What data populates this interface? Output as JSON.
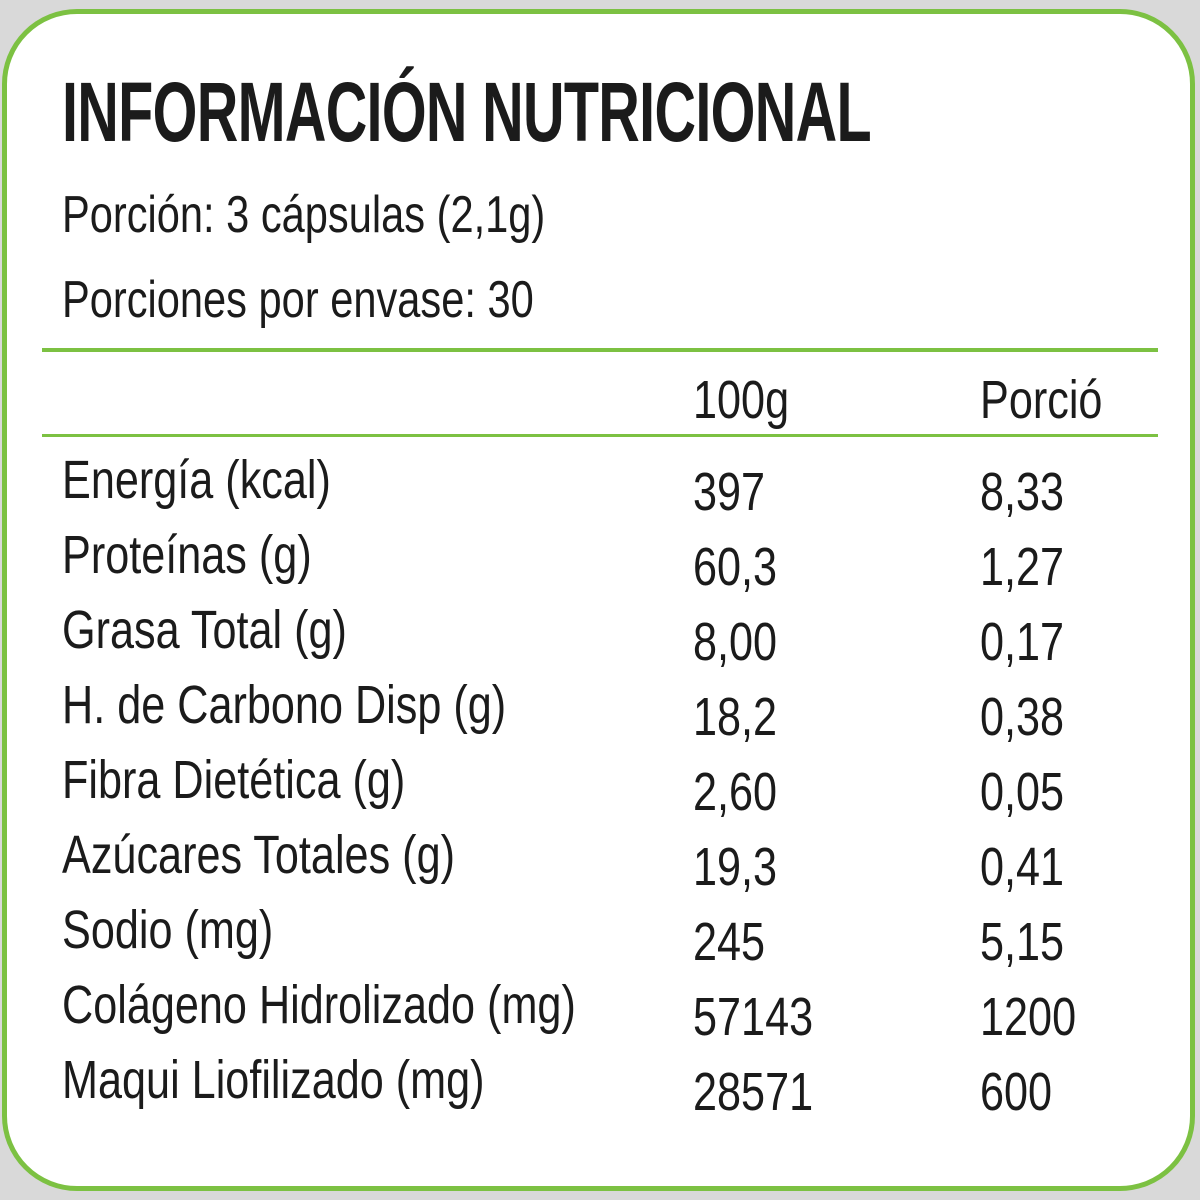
{
  "title": "INFORMACIÓN NUTRICIONAL",
  "serving": "Porción: 3 cápsulas (2,1g)",
  "servings_per_container": "Porciones por envase: 30",
  "colors": {
    "border": "#7cc142",
    "text": "#1b1b1b",
    "background": "#d9d9d9"
  },
  "columns": [
    "100g",
    "Porció"
  ],
  "rows": [
    {
      "label": "Energía (kcal)",
      "per100g": "397",
      "portion": "8,33"
    },
    {
      "label": "Proteínas (g)",
      "per100g": "60,3",
      "portion": "1,27"
    },
    {
      "label": "Grasa Total (g)",
      "per100g": "8,00",
      "portion": "0,17"
    },
    {
      "label": "H. de Carbono Disp (g)",
      "per100g": "18,2",
      "portion": "0,38"
    },
    {
      "label": "Fibra Dietética (g)",
      "per100g": "2,60",
      "portion": "0,05"
    },
    {
      "label": "Azúcares Totales (g)",
      "per100g": "19,3",
      "portion": "0,41"
    },
    {
      "label": "Sodio (mg)",
      "per100g": "245",
      "portion": "5,15"
    },
    {
      "label": "Colágeno Hidrolizado (mg)",
      "per100g": "57143",
      "portion": "1200"
    },
    {
      "label": "Maqui Liofilizado (mg)",
      "per100g": "28571",
      "portion": "600"
    }
  ]
}
